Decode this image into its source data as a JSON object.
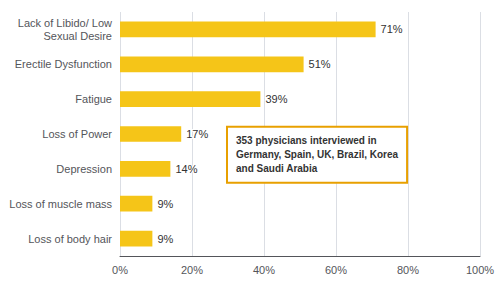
{
  "chart_data": {
    "type": "bar",
    "orientation": "horizontal",
    "categories": [
      "Loss of body hair",
      "Loss of muscle mass",
      "Depression",
      "Loss of Power",
      "Fatigue",
      "Erectile Dysfunction",
      "Lack of Libido/ Low\nSexual Desire"
    ],
    "values": [
      9,
      9,
      14,
      17,
      39,
      51,
      71
    ],
    "value_labels": [
      "9%",
      "9%",
      "14%",
      "17%",
      "39%",
      "51%",
      "71%"
    ],
    "data_labels": true,
    "color": "#F5C518",
    "xlim": [
      0,
      100
    ],
    "xticks": [
      {
        "value": 0,
        "label": "0%"
      },
      {
        "value": 20,
        "label": "20%"
      },
      {
        "value": 40,
        "label": "40%"
      },
      {
        "value": 60,
        "label": "60%"
      },
      {
        "value": 80,
        "label": "80%"
      },
      {
        "value": 100,
        "label": "100%"
      }
    ],
    "grid": true,
    "annotations": [
      {
        "text": "353 physicians interviewed in\nGermany, Spain, UK, Brazil, Korea\nand Saudi Arabia",
        "color": "#E8A000"
      }
    ]
  }
}
